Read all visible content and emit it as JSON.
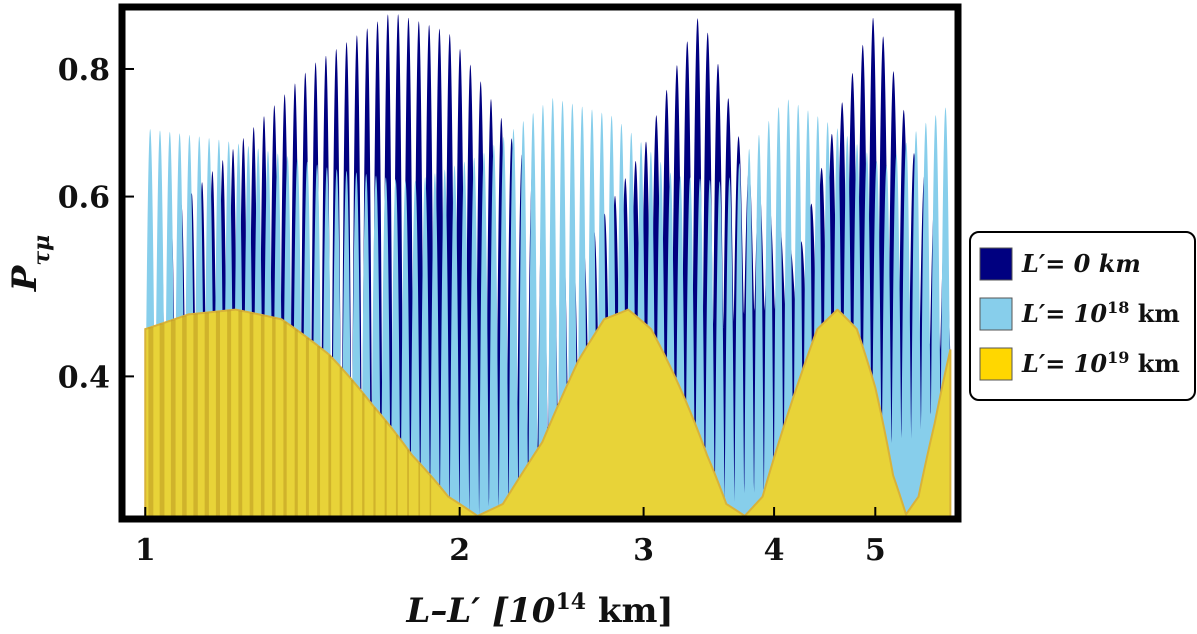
{
  "chart_data": {
    "type": "area",
    "xscale": "log",
    "yscale": "log",
    "xlim": [
      0.95,
      6.0
    ],
    "ylim": [
      0.29,
      0.92
    ],
    "xticks": [
      1,
      2,
      3,
      4,
      5
    ],
    "xtick_labels": [
      "1",
      "2",
      "3",
      "4",
      "5"
    ],
    "yticks": [
      0.4,
      0.6,
      0.8
    ],
    "ytick_labels": [
      "0.4",
      "0.6",
      "0.8"
    ],
    "xlabel": {
      "main": "L–L′ [10",
      "sup": "14",
      "tail": " km]"
    },
    "ylabel": {
      "main": "P",
      "sub": "τμ"
    },
    "grid": false,
    "legend_position": "right",
    "colors": {
      "navy": "#000080",
      "lightblue": "#87CEEB",
      "gold": "#E8D338",
      "gold_legend": "#FFD700",
      "gold_edge": "#D8B23A"
    },
    "series": [
      {
        "key": "navy",
        "legend": {
          "main": "L′= 0 km",
          "sup": "",
          "tail": ""
        },
        "fast_cycles": 78,
        "envelope": [
          [
            1.0,
            0.54
          ],
          [
            1.2,
            0.66
          ],
          [
            1.45,
            0.81
          ],
          [
            1.72,
            0.91
          ],
          [
            1.95,
            0.87
          ],
          [
            2.25,
            0.68
          ],
          [
            2.6,
            0.52
          ],
          [
            3.0,
            0.67
          ],
          [
            3.4,
            0.91
          ],
          [
            3.75,
            0.65
          ],
          [
            4.2,
            0.52
          ],
          [
            4.6,
            0.72
          ],
          [
            5.0,
            0.91
          ],
          [
            5.45,
            0.66
          ],
          [
            5.9,
            0.55
          ]
        ],
        "floor": [
          [
            1.0,
            0.3
          ],
          [
            1.4,
            0.3
          ],
          [
            1.7,
            0.31
          ],
          [
            2.0,
            0.32
          ],
          [
            2.3,
            0.33
          ],
          [
            2.6,
            0.35
          ],
          [
            2.9,
            0.38
          ],
          [
            3.2,
            0.41
          ],
          [
            3.5,
            0.44
          ],
          [
            3.8,
            0.46
          ],
          [
            4.2,
            0.47
          ],
          [
            4.6,
            0.46
          ],
          [
            5.0,
            0.44
          ],
          [
            5.4,
            0.43
          ],
          [
            5.9,
            0.42
          ]
        ]
      },
      {
        "key": "lightblue",
        "legend": {
          "main": "L′= 10",
          "sup": "18",
          "tail": " km"
        },
        "fast_cycles": 82,
        "envelope": [
          [
            1.0,
            0.7
          ],
          [
            1.2,
            0.68
          ],
          [
            1.5,
            0.64
          ],
          [
            1.8,
            0.62
          ],
          [
            2.1,
            0.66
          ],
          [
            2.45,
            0.75
          ],
          [
            2.8,
            0.72
          ],
          [
            3.2,
            0.63
          ],
          [
            3.6,
            0.62
          ],
          [
            4.1,
            0.75
          ],
          [
            4.6,
            0.7
          ],
          [
            5.1,
            0.64
          ],
          [
            5.5,
            0.7
          ],
          [
            5.9,
            0.74
          ]
        ],
        "floor": [
          [
            1.0,
            0.36
          ],
          [
            1.3,
            0.33
          ],
          [
            1.6,
            0.31
          ],
          [
            2.0,
            0.29
          ],
          [
            2.3,
            0.29
          ],
          [
            2.7,
            0.3
          ],
          [
            3.2,
            0.31
          ],
          [
            3.6,
            0.3
          ],
          [
            4.0,
            0.3
          ],
          [
            4.5,
            0.31
          ],
          [
            5.0,
            0.33
          ],
          [
            5.5,
            0.35
          ],
          [
            5.9,
            0.37
          ]
        ]
      },
      {
        "key": "gold",
        "legend": {
          "main": "L′= 10",
          "sup": "19",
          "tail": "  km"
        },
        "fast_cycles": 72,
        "envelope": [
          [
            1.0,
            0.445
          ],
          [
            1.1,
            0.46
          ],
          [
            1.22,
            0.465
          ],
          [
            1.35,
            0.455
          ],
          [
            1.5,
            0.42
          ],
          [
            1.65,
            0.375
          ],
          [
            1.8,
            0.335
          ],
          [
            1.95,
            0.305
          ],
          [
            2.08,
            0.292
          ],
          [
            2.2,
            0.3
          ],
          [
            2.4,
            0.345
          ],
          [
            2.6,
            0.415
          ],
          [
            2.75,
            0.455
          ],
          [
            2.9,
            0.465
          ],
          [
            3.05,
            0.445
          ],
          [
            3.25,
            0.39
          ],
          [
            3.45,
            0.335
          ],
          [
            3.6,
            0.3
          ],
          [
            3.75,
            0.292
          ],
          [
            3.9,
            0.305
          ],
          [
            4.15,
            0.375
          ],
          [
            4.4,
            0.445
          ],
          [
            4.6,
            0.465
          ],
          [
            4.8,
            0.445
          ],
          [
            5.0,
            0.39
          ],
          [
            5.2,
            0.32
          ],
          [
            5.35,
            0.293
          ],
          [
            5.5,
            0.305
          ],
          [
            5.7,
            0.36
          ],
          [
            5.9,
            0.425
          ]
        ]
      }
    ]
  }
}
